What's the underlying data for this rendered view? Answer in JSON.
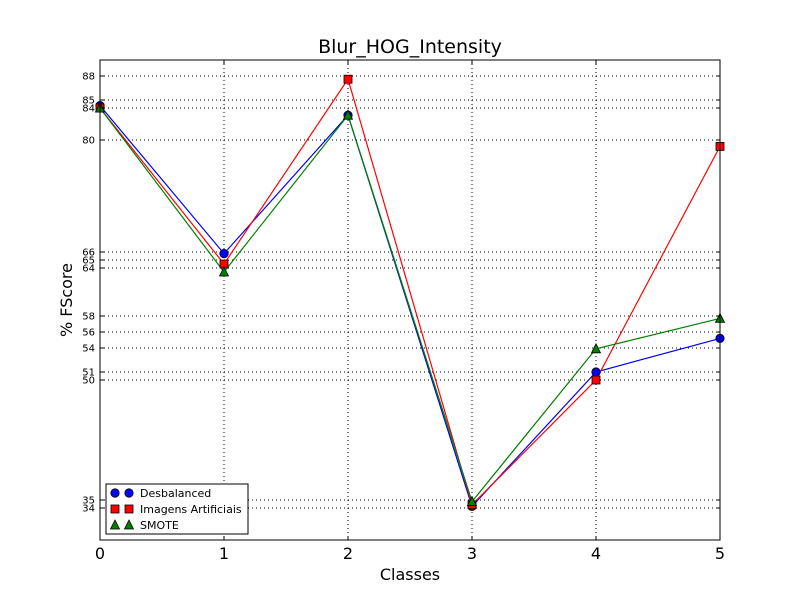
{
  "chart_data": {
    "type": "line",
    "title": "Blur_HOG_Intensity",
    "xlabel": "Classes",
    "ylabel": "% FScore",
    "x": [
      0,
      1,
      2,
      3,
      4,
      5
    ],
    "xlim": [
      0,
      5
    ],
    "ylim": [
      30,
      90
    ],
    "x_ticks": [
      "0",
      "1",
      "2",
      "3",
      "4",
      "5"
    ],
    "y_ticks": [
      34,
      35,
      50,
      51,
      54,
      56,
      58,
      64,
      65,
      66,
      80,
      84,
      85,
      88
    ],
    "grid": true,
    "legend_position": "lower-left",
    "series": [
      {
        "name": "Desbalanced",
        "color": "#0000ff",
        "marker": "circle",
        "values": [
          84.3,
          65.8,
          83.1,
          34.2,
          51.0,
          55.2
        ]
      },
      {
        "name": "Imagens Artificiais",
        "color": "#ff0000",
        "marker": "square",
        "values": [
          84.0,
          64.5,
          87.6,
          34.4,
          50.0,
          79.2
        ]
      },
      {
        "name": "SMOTE",
        "color": "#008000",
        "marker": "triangle",
        "values": [
          84.0,
          63.5,
          83.1,
          34.8,
          53.9,
          57.7
        ]
      }
    ]
  }
}
